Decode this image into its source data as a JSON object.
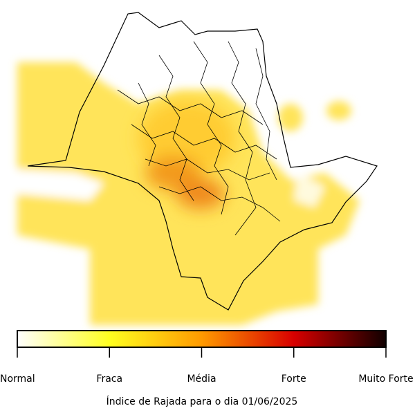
{
  "colorbar": {
    "labels": [
      "Normal",
      "Fraca",
      "Média",
      "Forte",
      "Muito Forte"
    ]
  },
  "caption": "Índice de Rajada para o dia 01/06/2025"
}
